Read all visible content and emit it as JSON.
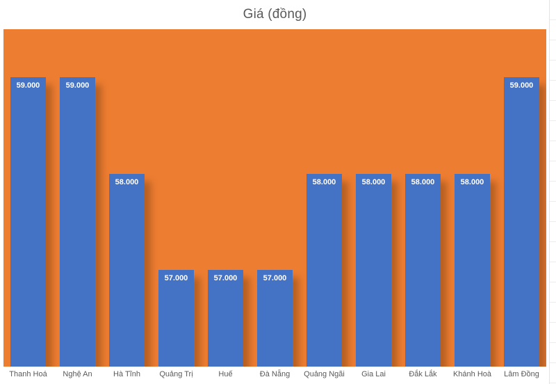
{
  "chart_data": {
    "type": "bar",
    "title": "Giá (đồng)",
    "categories": [
      "Thanh Hoá",
      "Nghệ An",
      "Hà Tĩnh",
      "Quảng Trị",
      "Huế",
      "Đà Nẵng",
      "Quảng Ngãi",
      "Gia Lai",
      "Đắk Lắk",
      "Khánh Hoà",
      "Lâm Đồng"
    ],
    "values": [
      59000,
      59000,
      58000,
      57000,
      57000,
      57000,
      58000,
      58000,
      58000,
      58000,
      59000
    ],
    "value_labels": [
      "59.000",
      "59.000",
      "58.000",
      "57.000",
      "57.000",
      "57.000",
      "58.000",
      "58.000",
      "58.000",
      "58.000",
      "59.000"
    ],
    "xlabel": "",
    "ylabel": "",
    "ylim": [
      56000,
      59500
    ],
    "grid": false,
    "legend": "none",
    "value_label_position": "inside-top"
  },
  "colors": {
    "bar": "#4472C4",
    "plot_background": "#ED7D31",
    "title_text": "#595959",
    "axis_text": "#595959",
    "value_label_text": "#FFFFFF"
  }
}
